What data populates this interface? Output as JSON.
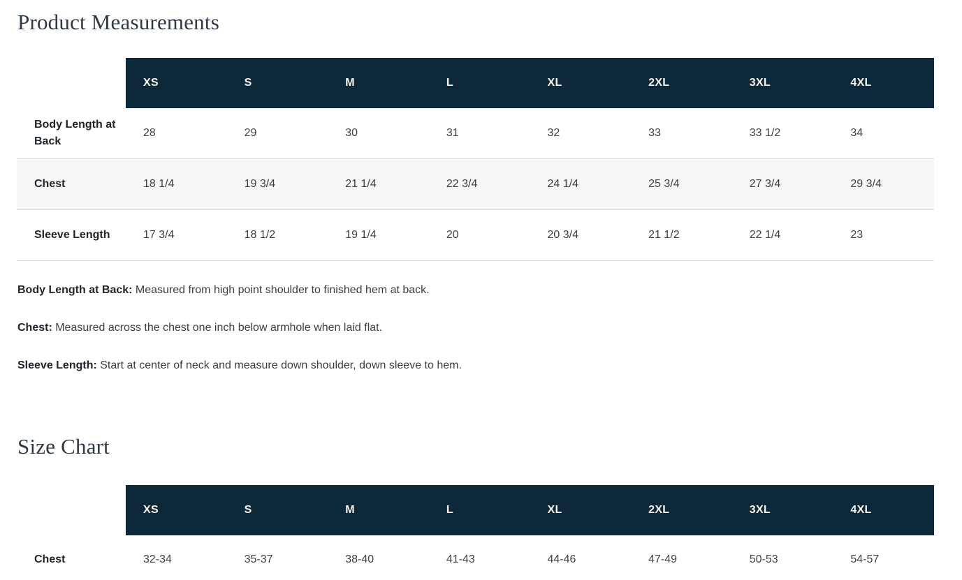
{
  "page": {
    "measurements_title": "Product Measurements",
    "size_chart_title": "Size Chart"
  },
  "colors": {
    "header_bg": "#0d2838",
    "header_text": "#f8f6ef",
    "stripe_bg": "#f7f7f8",
    "row_border": "#dedede",
    "title_color": "#2f3a47",
    "label_color": "#20262c",
    "value_color": "#3d4146"
  },
  "measurements_table": {
    "columns": [
      "XS",
      "S",
      "M",
      "L",
      "XL",
      "2XL",
      "3XL",
      "4XL"
    ],
    "rows": [
      {
        "label": "Body Length at Back",
        "values": [
          "28",
          "29",
          "30",
          "31",
          "32",
          "33",
          "33 1/2",
          "34"
        ]
      },
      {
        "label": "Chest",
        "values": [
          "18 1/4",
          "19 3/4",
          "21 1/4",
          "22 3/4",
          "24 1/4",
          "25 3/4",
          "27 3/4",
          "29 3/4"
        ]
      },
      {
        "label": "Sleeve Length",
        "values": [
          "17 3/4",
          "18 1/2",
          "19 1/4",
          "20",
          "20 3/4",
          "21 1/2",
          "22 1/4",
          "23"
        ]
      }
    ]
  },
  "definitions": [
    {
      "term": "Body Length at Back:",
      "text": " Measured from high point shoulder to finished hem at back."
    },
    {
      "term": "Chest:",
      "text": " Measured across the chest one inch below armhole when laid flat."
    },
    {
      "term": "Sleeve Length:",
      "text": " Start at center of neck and measure down shoulder, down sleeve to hem."
    }
  ],
  "size_chart_table": {
    "columns": [
      "XS",
      "S",
      "M",
      "L",
      "XL",
      "2XL",
      "3XL",
      "4XL"
    ],
    "rows": [
      {
        "label": "Chest",
        "values": [
          "32-34",
          "35-37",
          "38-40",
          "41-43",
          "44-46",
          "47-49",
          "50-53",
          "54-57"
        ]
      }
    ]
  }
}
